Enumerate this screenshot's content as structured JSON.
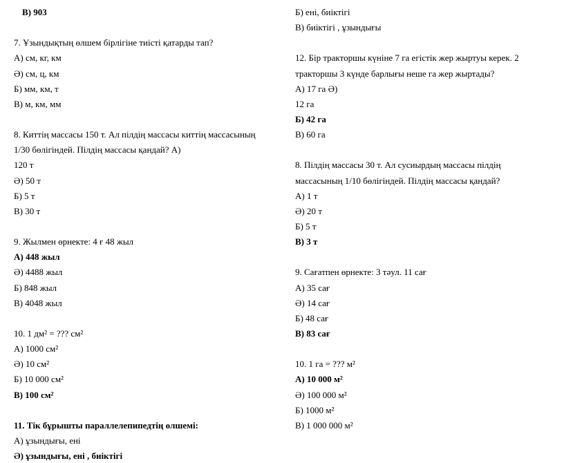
{
  "leftColumn": {
    "topAnswer": "В)  903",
    "q7": {
      "text": "7. Ұзындықтың өлшем  бірлігіне тиісті қатарды тап?",
      "A": "А)   см,  кг,  км",
      "E": "Ә)  см,   ц,  км",
      "B": "Б)  мм,   км,   т",
      "V": "В)  м,   км,   мм"
    },
    "q8": {
      "line1": "8. Киттің  массасы  150 т.  Ал пілдің  массасы  киттің  массасының",
      "line2": "1/30 бөлігіндей.  Пілдің  массасы  қандай?                                        А)",
      "A": "120  т",
      "E": "Ә)  50 т",
      "B": "Б)  5   т",
      "V": "В)  30 т"
    },
    "q9": {
      "text": "9. Жылмен  өрнекте: 4 ғ   48 жыл",
      "A": "А)   448 жыл",
      "E": "Ә)  4488 жыл",
      "B": "Б)  848 жыл",
      "V": "В)  4048 жыл"
    },
    "q10": {
      "text": "10.   1 дм² = ???  см²",
      "A": "А)   1000 см²",
      "E": "Ә)  10  см²",
      "B": "Б)  10  000 см²",
      "V": "В)  100 см²"
    },
    "q11": {
      "text": "11. Тік бұрышты параллелепипедтің  өлшемі:",
      "A": "А)   ұзындығы,  ені",
      "E": "Ә)  ұзындығы, ені , биіктігі"
    }
  },
  "rightColumn": {
    "topB": "Б)  ені, биіктігі",
    "topV": "В)  биіктігі  , ұзындығы",
    "q12": {
      "line1": "12. Бір тракторшы күніне 7 га егістік  жер жыртуы  керек.  2",
      "line2": "тракторшы  3 күнде  барлығы  неше га жер жыртады?",
      "A": "А)   17 га                                                                                                     Ә)",
      "Aextra": "12 га",
      "B": "Б)  42 га",
      "V": "В)  60 га"
    },
    "q8": {
      "line1": "8. Пілдің  массасы  30  т.  Ал сусиырдың   массасы  пілдің",
      "line2": "массасының  1/10  бөлігіндей.  Пілдің  массасы  қандай?",
      "A": "А)   1  т",
      "E": "Ә)  20  т",
      "B": "Б)  5   т",
      "V": "В)   3 т"
    },
    "q9": {
      "text": "9. Сағатпен  өрнекте: 3 тәул.  11 сағ",
      "A": "А)   35 сағ",
      "E": "Ә)  14 сағ",
      "B": "Б)  48 сағ",
      "V": "В)  83  сағ"
    },
    "q10": {
      "text": "10.   1 га  = ???  м²",
      "A": "А)   10 000  м²",
      "E": "Ә)  100  000  м²",
      "B": "Б)  1000 м²",
      "V": "В)  1 000 000 м²"
    }
  }
}
